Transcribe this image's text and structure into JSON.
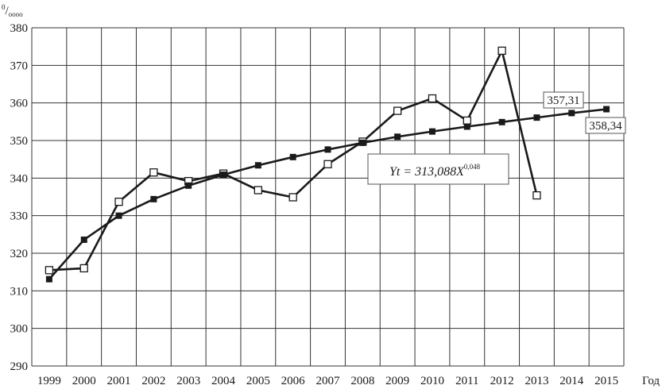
{
  "chart_data": {
    "type": "line",
    "title": "",
    "ylabel_unit": {
      "sup": "0",
      "main": "/",
      "sub": "oooo"
    },
    "xlabel": "Год",
    "ylim": [
      290,
      380
    ],
    "ytick_values": [
      290,
      300,
      310,
      320,
      330,
      340,
      350,
      360,
      370,
      380
    ],
    "ytick_labels": [
      "290",
      "300",
      "310",
      "320",
      "330",
      "340",
      "350",
      "360",
      "370",
      "380"
    ],
    "categories": [
      "1999",
      "2000",
      "2001",
      "2002",
      "2003",
      "2004",
      "2005",
      "2006",
      "2007",
      "2008",
      "2009",
      "2010",
      "2011",
      "2012",
      "2013",
      "2014",
      "2015"
    ],
    "grid": true,
    "series": [
      {
        "marker": "square-open",
        "color": "#1a1a1a",
        "values": [
          315.5,
          316.0,
          333.7,
          341.5,
          339.2,
          341.2,
          336.8,
          334.9,
          343.7,
          349.7,
          357.9,
          361.2,
          355.3,
          373.9,
          335.4,
          null,
          null
        ]
      },
      {
        "marker": "square-filled",
        "color": "#1a1a1a",
        "values": [
          313.1,
          323.6,
          330.0,
          334.4,
          338.0,
          340.9,
          343.4,
          345.6,
          347.6,
          349.4,
          351.0,
          352.4,
          353.7,
          354.9,
          356.1,
          357.31,
          358.34
        ]
      }
    ],
    "annotations": {
      "formula": {
        "prefix": "Yt = 313,088X",
        "exponent": "0,048"
      },
      "callouts": [
        {
          "text": "357,31"
        },
        {
          "text": "358,34"
        }
      ]
    }
  }
}
